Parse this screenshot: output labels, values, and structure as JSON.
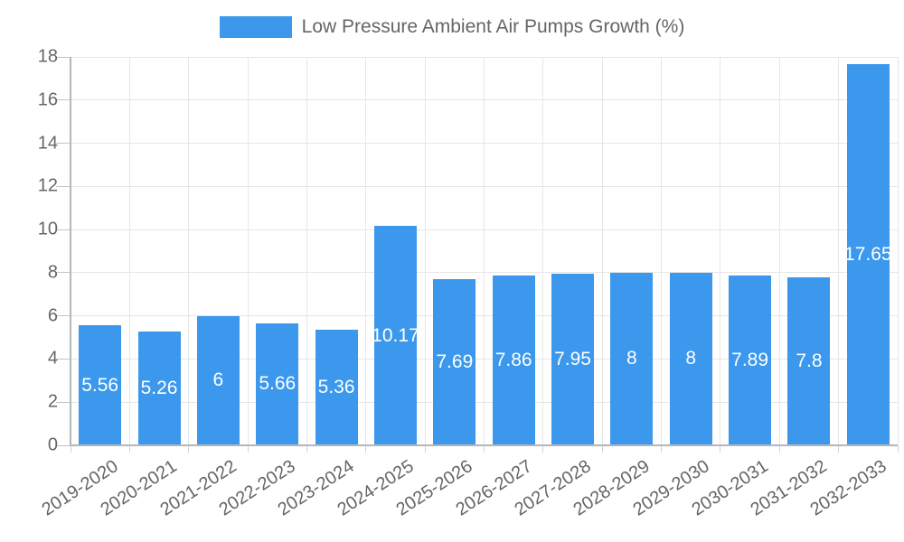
{
  "legend": {
    "label": "Low Pressure Ambient Air Pumps Growth (%)"
  },
  "colors": {
    "bar": "#3b98ec",
    "grid": "#e6e6e6",
    "axis": "#b6b6b6",
    "tick": "#c4c4c4",
    "text": "#666666",
    "value_label": "#ffffff",
    "background": "#ffffff"
  },
  "chart_data": {
    "type": "bar",
    "title": "",
    "xlabel": "",
    "ylabel": "",
    "legend_position": "top",
    "grid": true,
    "series_name": "Low Pressure Ambient Air Pumps Growth (%)",
    "categories": [
      "2019-2020",
      "2020-2021",
      "2021-2022",
      "2022-2023",
      "2023-2024",
      "2024-2025",
      "2025-2026",
      "2026-2027",
      "2027-2028",
      "2028-2029",
      "2029-2030",
      "2030-2031",
      "2031-2032",
      "2032-2033"
    ],
    "values": [
      5.56,
      5.26,
      6,
      5.66,
      5.36,
      10.17,
      7.69,
      7.86,
      7.95,
      8,
      8,
      7.89,
      7.8,
      17.65
    ],
    "value_labels": [
      "5.56",
      "5.26",
      "6",
      "5.66",
      "5.36",
      "10.17",
      "7.69",
      "7.86",
      "7.95",
      "8",
      "8",
      "7.89",
      "7.8",
      "17.65"
    ],
    "ylim": [
      0,
      18
    ],
    "ytick_step": 2,
    "yticks": [
      0,
      2,
      4,
      6,
      8,
      10,
      12,
      14,
      16,
      18
    ]
  }
}
